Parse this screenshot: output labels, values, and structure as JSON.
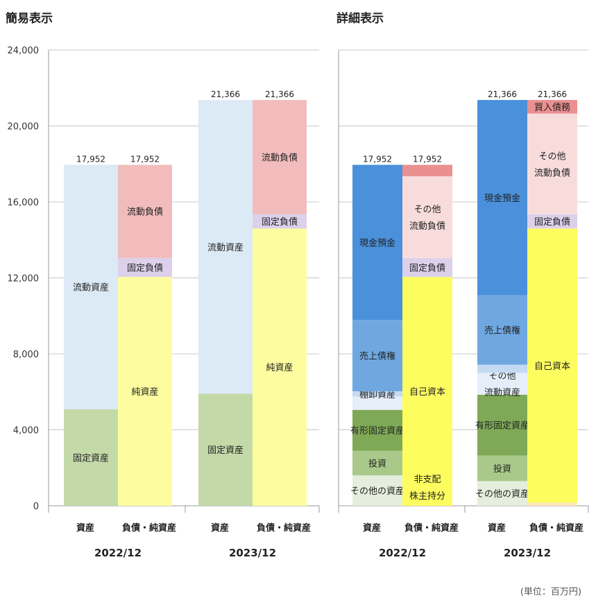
{
  "unit_label": "(単位：百万円)",
  "chart_data": {
    "type": "bar",
    "stacked": true,
    "ylim": [
      0,
      24000
    ],
    "yticks": [
      0,
      4000,
      8000,
      12000,
      16000,
      20000,
      24000
    ],
    "ytick_labels": [
      "0",
      "4,000",
      "8,000",
      "12,000",
      "16,000",
      "20,000",
      "24,000"
    ],
    "grid": true,
    "panels": [
      {
        "title": "簡易表示",
        "groups": [
          {
            "period": "2022/12",
            "bars": [
              {
                "category": "資産",
                "total": 17952,
                "total_label": "17,952",
                "segments": [
                  {
                    "name": "固定資産",
                    "lines": [
                      "固定資産"
                    ],
                    "value": 5080,
                    "color": "#c3d9a8"
                  },
                  {
                    "name": "流動資産",
                    "lines": [
                      "流動資産"
                    ],
                    "value": 12872,
                    "color": "#dceaf6"
                  }
                ]
              },
              {
                "category": "負債・純資産",
                "total": 17952,
                "total_label": "17,952",
                "segments": [
                  {
                    "name": "純資産",
                    "lines": [
                      "純資産"
                    ],
                    "value": 12050,
                    "color": "#fdfda0"
                  },
                  {
                    "name": "固定負債",
                    "lines": [
                      "固定負債"
                    ],
                    "value": 1000,
                    "color": "#dcd0ea"
                  },
                  {
                    "name": "流動負債",
                    "lines": [
                      "流動負債"
                    ],
                    "value": 4902,
                    "color": "#f2bcbc"
                  }
                ]
              }
            ]
          },
          {
            "period": "2023/12",
            "bars": [
              {
                "category": "資産",
                "total": 21366,
                "total_label": "21,366",
                "segments": [
                  {
                    "name": "固定資産",
                    "lines": [
                      "固定資産"
                    ],
                    "value": 5900,
                    "color": "#c3d9a8"
                  },
                  {
                    "name": "流動資産",
                    "lines": [
                      "流動資産"
                    ],
                    "value": 15466,
                    "color": "#dceaf6"
                  }
                ]
              },
              {
                "category": "負債・純資産",
                "total": 21366,
                "total_label": "21,366",
                "segments": [
                  {
                    "name": "純資産",
                    "lines": [
                      "純資産"
                    ],
                    "value": 14600,
                    "color": "#fdfda0"
                  },
                  {
                    "name": "固定負債",
                    "lines": [
                      "固定負債"
                    ],
                    "value": 750,
                    "color": "#dcd0ea"
                  },
                  {
                    "name": "流動負債",
                    "lines": [
                      "流動負債"
                    ],
                    "value": 6016,
                    "color": "#f2bcbc"
                  }
                ]
              }
            ]
          }
        ]
      },
      {
        "title": "詳細表示",
        "groups": [
          {
            "period": "2022/12",
            "bars": [
              {
                "category": "資産",
                "total": 17952,
                "total_label": "17,952",
                "segments": [
                  {
                    "name": "その他の資産",
                    "lines": [
                      "その他の資産"
                    ],
                    "value": 1600,
                    "color": "#e4eedc"
                  },
                  {
                    "name": "投資",
                    "lines": [
                      "投資"
                    ],
                    "value": 1300,
                    "color": "#a9c98a"
                  },
                  {
                    "name": "有形固定資産",
                    "lines": [
                      "有形固定資産"
                    ],
                    "value": 2150,
                    "color": "#7fa957"
                  },
                  {
                    "name": "その他流動資産",
                    "lines": [],
                    "value": 700,
                    "color": "#e6eef9"
                  },
                  {
                    "name": "棚卸資産",
                    "lines": [
                      "棚卸資産"
                    ],
                    "value": 280,
                    "color": "#c4daf2"
                  },
                  {
                    "name": "売上債権",
                    "lines": [
                      "売上債権"
                    ],
                    "value": 3750,
                    "color": "#6fa8e0"
                  },
                  {
                    "name": "現金預金",
                    "lines": [
                      "現金預金"
                    ],
                    "value": 8172,
                    "color": "#4a90da"
                  }
                ]
              },
              {
                "category": "負債・純資産",
                "total": 17952,
                "total_label": "17,952",
                "segments": [
                  {
                    "name": "非支配株主持分",
                    "lines": [
                      "非支配",
                      "株主持分"
                    ],
                    "value": 0,
                    "color": "#fde5b8"
                  },
                  {
                    "name": "自己資本",
                    "lines": [
                      "自己資本"
                    ],
                    "value": 12050,
                    "color": "#fdfd60"
                  },
                  {
                    "name": "固定負債",
                    "lines": [
                      "固定負債"
                    ],
                    "value": 1000,
                    "color": "#dcd0ea"
                  },
                  {
                    "name": "その他流動負債",
                    "lines": [
                      "その他",
                      "流動負債"
                    ],
                    "value": 4300,
                    "color": "#f8dcdc"
                  },
                  {
                    "name": "買入債務",
                    "lines": [],
                    "value": 602,
                    "color": "#ea9090"
                  }
                ]
              }
            ]
          },
          {
            "period": "2023/12",
            "bars": [
              {
                "category": "資産",
                "total": 21366,
                "total_label": "21,366",
                "segments": [
                  {
                    "name": "その他の資産",
                    "lines": [
                      "その他の資産"
                    ],
                    "value": 1300,
                    "color": "#e4eedc"
                  },
                  {
                    "name": "投資",
                    "lines": [
                      "投資"
                    ],
                    "value": 1350,
                    "color": "#a9c98a"
                  },
                  {
                    "name": "有形固定資産",
                    "lines": [
                      "有形固定資産"
                    ],
                    "value": 3200,
                    "color": "#7fa957"
                  },
                  {
                    "name": "その他流動資産",
                    "lines": [
                      "その他",
                      "流動資産"
                    ],
                    "value": 1150,
                    "color": "#e6eef9"
                  },
                  {
                    "name": "棚卸資産",
                    "lines": [],
                    "value": 430,
                    "color": "#c4daf2"
                  },
                  {
                    "name": "売上債権",
                    "lines": [
                      "売上債権"
                    ],
                    "value": 3650,
                    "color": "#6fa8e0"
                  },
                  {
                    "name": "現金預金",
                    "lines": [
                      "現金預金"
                    ],
                    "value": 10286,
                    "color": "#4a90da"
                  }
                ]
              },
              {
                "category": "負債・純資産",
                "total": 21366,
                "total_label": "21,366",
                "segments": [
                  {
                    "name": "非支配株主持分",
                    "lines": [],
                    "value": 170,
                    "color": "#fde5b8"
                  },
                  {
                    "name": "自己資本",
                    "lines": [
                      "自己資本"
                    ],
                    "value": 14430,
                    "color": "#fdfd60"
                  },
                  {
                    "name": "固定負債",
                    "lines": [
                      "固定負債"
                    ],
                    "value": 750,
                    "color": "#dcd0ea"
                  },
                  {
                    "name": "その他流動負債",
                    "lines": [
                      "その他",
                      "流動負債"
                    ],
                    "value": 5300,
                    "color": "#f8dcdc"
                  },
                  {
                    "name": "買入債務",
                    "lines": [
                      "買入債務"
                    ],
                    "value": 716,
                    "color": "#ea9090"
                  }
                ]
              }
            ]
          }
        ]
      }
    ]
  }
}
